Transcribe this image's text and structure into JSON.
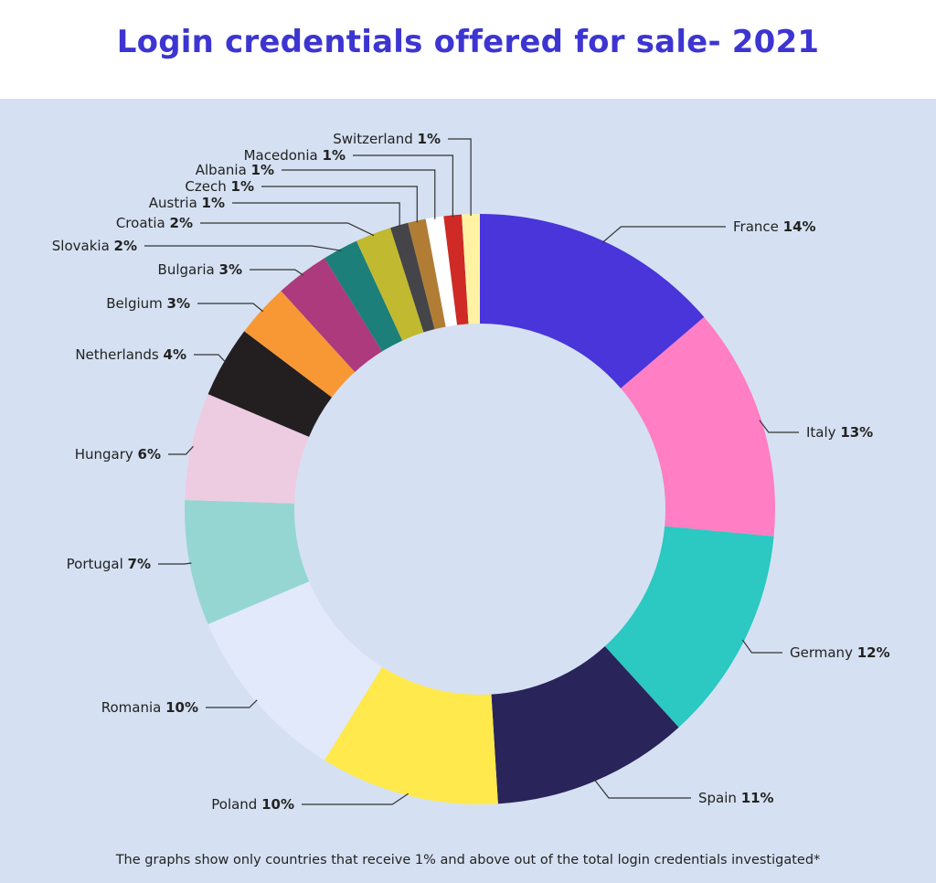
{
  "title": "Login credentials offered for sale- 2021",
  "footnote": "The graphs show only countries that receive 1% and above out of the total login credentials investigated*",
  "colors": {
    "title": "#3d35d1",
    "background": "#d5e1f2",
    "leader": "#333333"
  },
  "chart_data": {
    "type": "pie",
    "donut": true,
    "title": "Login credentials offered for sale- 2021",
    "slices": [
      {
        "label": "France",
        "pct_label": "14%",
        "value": 14,
        "color": "#4935d9"
      },
      {
        "label": "Italy",
        "pct_label": "13%",
        "value": 13,
        "color": "#ff7ec4"
      },
      {
        "label": "Germany",
        "pct_label": "12%",
        "value": 12,
        "color": "#2cc8c2"
      },
      {
        "label": "Spain",
        "pct_label": "11%",
        "value": 11,
        "color": "#29245a"
      },
      {
        "label": "Poland",
        "pct_label": "10%",
        "value": 10,
        "color": "#ffe94c"
      },
      {
        "label": "Romania",
        "pct_label": "10%",
        "value": 10,
        "color": "#e2e9fb"
      },
      {
        "label": "Portugal",
        "pct_label": "7%",
        "value": 7,
        "color": "#95d6d3"
      },
      {
        "label": "Hungary",
        "pct_label": "6%",
        "value": 6,
        "color": "#edcce2"
      },
      {
        "label": "Netherlands",
        "pct_label": "4%",
        "value": 4,
        "color": "#231f20"
      },
      {
        "label": "Belgium",
        "pct_label": "3%",
        "value": 3,
        "color": "#f89834"
      },
      {
        "label": "Bulgaria",
        "pct_label": "3%",
        "value": 3,
        "color": "#ac3a7c"
      },
      {
        "label": "Slovakia",
        "pct_label": "2%",
        "value": 2,
        "color": "#1c7f79"
      },
      {
        "label": "Croatia",
        "pct_label": "2%",
        "value": 2,
        "color": "#c1b92f"
      },
      {
        "label": "Austria",
        "pct_label": "1%",
        "value": 1,
        "color": "#454448"
      },
      {
        "label": "Czech",
        "pct_label": "1%",
        "value": 1,
        "color": "#b17d35"
      },
      {
        "label": "Albania",
        "pct_label": "1%",
        "value": 1,
        "color": "#ffffff"
      },
      {
        "label": "Macedonia",
        "pct_label": "1%",
        "value": 1,
        "color": "#cf2a26"
      },
      {
        "label": "Switzerland",
        "pct_label": "1%",
        "value": 1,
        "color": "#fff3a3"
      }
    ]
  }
}
